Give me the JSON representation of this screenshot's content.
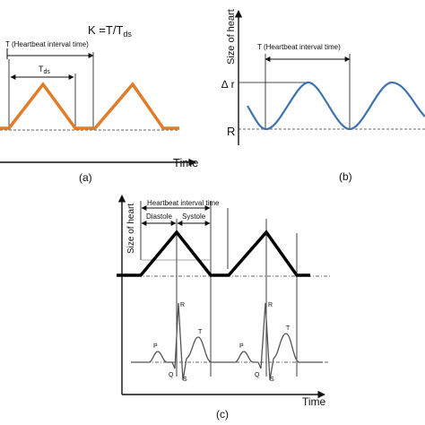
{
  "panel_a": {
    "formula": "K =T/T",
    "formula_sub": "ds",
    "interval_label": "T (Heartbeat interval time)",
    "tds_label": "T",
    "tds_sub": "ds",
    "x_label": "Time",
    "caption": "(a)",
    "line_color": "#E07C2A"
  },
  "panel_b": {
    "y_label": "Size of heart",
    "interval_label": "T (Heartbeat interval time)",
    "delta_r_label": "∆ r",
    "r_label": "R",
    "caption": "(b)",
    "line_color": "#3F72B0"
  },
  "panel_c": {
    "y_label": "Size of heart",
    "interval_label": "Heartbeat interval time",
    "diastole_label": "Diastole",
    "systole_label": "Systole",
    "ecg_p": "P",
    "ecg_q": "Q",
    "ecg_r": "R",
    "ecg_s": "S",
    "ecg_t": "T",
    "x_label": "Time",
    "caption": "(c)",
    "line_color": "#000000"
  }
}
